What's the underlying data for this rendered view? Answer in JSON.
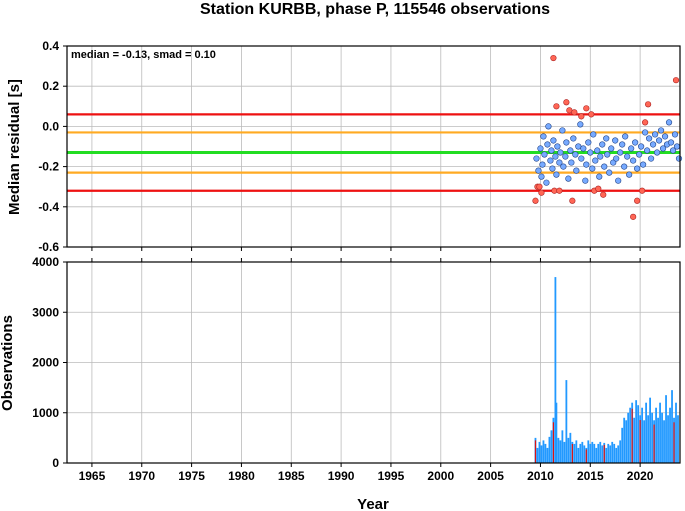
{
  "title": "Station KURBB, phase P, 115546 observations",
  "xlabel": "Year",
  "x_ticks": [
    "1965",
    "1970",
    "1975",
    "1980",
    "1985",
    "1990",
    "1995",
    "2000",
    "2005",
    "2010",
    "2015",
    "2020"
  ],
  "colors": {
    "median_line": "#22dd22",
    "smad_lines": "#ffaa22",
    "limit_lines": "#ee1111",
    "inlier_points": "#77aaff",
    "outlier_points": "#ff6655",
    "bars": "#2299ff",
    "bar_highlight": "#dd1111",
    "grid": "#bbbbbb"
  },
  "chart_data": [
    {
      "type": "scatter",
      "name": "residual_panel",
      "ylabel": "Median residual [s]",
      "annotation": "median = -0.13, smad = 0.10",
      "xlim": [
        1962.5,
        2024
      ],
      "ylim": [
        -0.6,
        0.4
      ],
      "y_ticks": [
        "0.4",
        "0.2",
        "0.0",
        "-0.2",
        "-0.4",
        "-0.6"
      ],
      "grid": true,
      "reference_lines": {
        "median": -0.13,
        "smad_band": [
          -0.03,
          -0.23
        ],
        "outlier_limits": [
          0.06,
          -0.32
        ]
      },
      "inliers": {
        "x": [
          2009.6,
          2009.8,
          2010.0,
          2010.1,
          2010.2,
          2010.3,
          2010.4,
          2010.6,
          2010.7,
          2010.8,
          2011.0,
          2011.1,
          2011.2,
          2011.3,
          2011.5,
          2011.6,
          2011.7,
          2011.9,
          2012.0,
          2012.2,
          2012.3,
          2012.5,
          2012.6,
          2012.8,
          2013.0,
          2013.1,
          2013.3,
          2013.5,
          2013.6,
          2013.8,
          2014.0,
          2014.1,
          2014.3,
          2014.5,
          2014.6,
          2014.8,
          2015.0,
          2015.2,
          2015.3,
          2015.5,
          2015.7,
          2015.9,
          2016.0,
          2016.2,
          2016.4,
          2016.6,
          2016.7,
          2016.9,
          2017.1,
          2017.3,
          2017.5,
          2017.6,
          2017.8,
          2018.0,
          2018.2,
          2018.4,
          2018.5,
          2018.7,
          2018.9,
          2019.1,
          2019.3,
          2019.5,
          2019.7,
          2019.9,
          2020.1,
          2020.3,
          2020.5,
          2020.7,
          2020.9,
          2021.1,
          2021.3,
          2021.5,
          2021.7,
          2021.9,
          2022.1,
          2022.3,
          2022.5,
          2022.7,
          2022.9,
          2023.1,
          2023.3,
          2023.5,
          2023.7,
          2023.9
        ],
        "y": [
          -0.16,
          -0.22,
          -0.11,
          -0.25,
          -0.19,
          -0.05,
          -0.14,
          -0.28,
          -0.09,
          0.0,
          -0.17,
          -0.12,
          -0.21,
          -0.07,
          -0.15,
          -0.24,
          -0.1,
          -0.18,
          -0.13,
          -0.02,
          -0.2,
          -0.15,
          -0.08,
          -0.26,
          -0.12,
          -0.18,
          -0.06,
          -0.14,
          -0.22,
          -0.1,
          0.01,
          -0.16,
          -0.11,
          -0.27,
          -0.19,
          -0.08,
          -0.13,
          -0.21,
          -0.04,
          -0.17,
          -0.12,
          -0.25,
          -0.15,
          -0.09,
          -0.2,
          -0.06,
          -0.14,
          -0.23,
          -0.11,
          -0.18,
          -0.07,
          -0.16,
          -0.27,
          -0.13,
          -0.09,
          -0.2,
          -0.05,
          -0.15,
          -0.24,
          -0.11,
          -0.17,
          -0.08,
          -0.21,
          -0.14,
          -0.1,
          -0.19,
          -0.03,
          -0.12,
          -0.06,
          -0.16,
          -0.09,
          -0.04,
          -0.13,
          -0.07,
          -0.02,
          -0.11,
          -0.05,
          -0.09,
          0.02,
          -0.08,
          -0.12,
          -0.04,
          -0.1,
          -0.16
        ]
      },
      "outliers": {
        "x": [
          2009.5,
          2009.7,
          2009.9,
          2010.1,
          2011.3,
          2011.4,
          2011.6,
          2011.9,
          2012.6,
          2012.9,
          2013.2,
          2013.4,
          2014.1,
          2014.6,
          2015.1,
          2015.4,
          2015.8,
          2016.3,
          2019.3,
          2019.7,
          2020.2,
          2020.5,
          2020.8,
          2023.6
        ],
        "y": [
          -0.37,
          -0.3,
          -0.3,
          -0.33,
          0.34,
          -0.32,
          0.1,
          -0.32,
          0.12,
          0.08,
          -0.37,
          0.07,
          0.05,
          0.09,
          0.06,
          -0.32,
          -0.31,
          -0.34,
          -0.45,
          -0.37,
          -0.32,
          0.02,
          0.11,
          0.23
        ]
      }
    },
    {
      "type": "bar",
      "name": "observations_panel",
      "ylabel": "Observations",
      "xlim": [
        1962.5,
        2024
      ],
      "ylim": [
        0,
        4000
      ],
      "y_ticks": [
        "4000",
        "3000",
        "2000",
        "1000",
        "0"
      ],
      "grid": true,
      "x": [
        2009.5,
        2009.7,
        2009.9,
        2010.1,
        2010.3,
        2010.5,
        2010.7,
        2010.9,
        2011.1,
        2011.3,
        2011.5,
        2011.6,
        2011.8,
        2012.0,
        2012.2,
        2012.4,
        2012.6,
        2012.8,
        2013.0,
        2013.2,
        2013.4,
        2013.6,
        2013.8,
        2014.0,
        2014.2,
        2014.4,
        2014.6,
        2014.8,
        2015.0,
        2015.2,
        2015.4,
        2015.6,
        2015.8,
        2016.0,
        2016.2,
        2016.4,
        2016.6,
        2016.8,
        2017.0,
        2017.2,
        2017.4,
        2017.6,
        2017.8,
        2018.0,
        2018.2,
        2018.4,
        2018.6,
        2018.8,
        2019.0,
        2019.2,
        2019.4,
        2019.6,
        2019.8,
        2020.0,
        2020.2,
        2020.4,
        2020.6,
        2020.8,
        2021.0,
        2021.2,
        2021.4,
        2021.6,
        2021.8,
        2022.0,
        2022.2,
        2022.4,
        2022.6,
        2022.8,
        2023.0,
        2023.2,
        2023.4,
        2023.6,
        2023.8
      ],
      "values": [
        500,
        300,
        420,
        350,
        450,
        380,
        300,
        520,
        650,
        900,
        3700,
        1200,
        500,
        450,
        650,
        420,
        1650,
        500,
        600,
        420,
        380,
        450,
        300,
        380,
        420,
        350,
        300,
        450,
        380,
        420,
        380,
        300,
        380,
        420,
        350,
        400,
        300,
        380,
        350,
        420,
        380,
        300,
        350,
        450,
        700,
        900,
        850,
        1000,
        1100,
        1200,
        900,
        1250,
        1150,
        950,
        1100,
        850,
        1200,
        950,
        1300,
        1000,
        850,
        1100,
        900,
        1200,
        1000,
        850,
        1350,
        950,
        1100,
        1450,
        900,
        1200,
        950
      ],
      "highlight_x": [
        2009.5,
        2011.3,
        2013.2,
        2014.6,
        2016.4,
        2019.2,
        2020.0,
        2021.4,
        2023.4
      ]
    }
  ]
}
